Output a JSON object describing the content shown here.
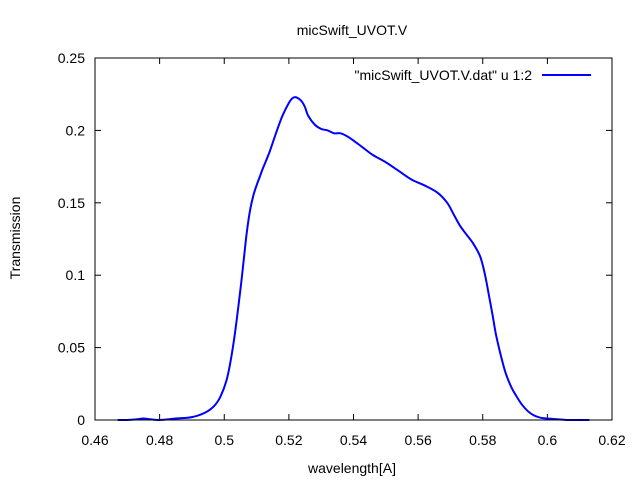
{
  "chart_data": {
    "type": "line",
    "title": "micSwift_UVOT.V",
    "xlabel": "wavelength[A]",
    "ylabel": "Transmission",
    "xlim": [
      0.46,
      0.62
    ],
    "ylim": [
      0,
      0.25
    ],
    "xticks": [
      "0.46",
      "0.48",
      "0.5",
      "0.52",
      "0.54",
      "0.56",
      "0.58",
      "0.6",
      "0.62"
    ],
    "yticks": [
      "0",
      "0.05",
      "0.1",
      "0.15",
      "0.2",
      "0.25"
    ],
    "grid": false,
    "legend_position": "top-right",
    "series": [
      {
        "name": "\"micSwift_UVOT.V.dat\" u 1:2",
        "color": "#0000ff",
        "x": [
          0.467,
          0.47,
          0.473,
          0.475,
          0.477,
          0.48,
          0.485,
          0.49,
          0.494,
          0.497,
          0.499,
          0.501,
          0.503,
          0.505,
          0.506,
          0.507,
          0.508,
          0.509,
          0.51,
          0.511,
          0.512,
          0.514,
          0.516,
          0.518,
          0.52,
          0.521,
          0.522,
          0.523,
          0.524,
          0.525,
          0.526,
          0.528,
          0.53,
          0.532,
          0.534,
          0.536,
          0.538,
          0.54,
          0.543,
          0.546,
          0.55,
          0.554,
          0.558,
          0.562,
          0.566,
          0.569,
          0.571,
          0.573,
          0.575,
          0.577,
          0.579,
          0.58,
          0.581,
          0.582,
          0.583,
          0.584,
          0.585,
          0.586,
          0.587,
          0.588,
          0.589,
          0.59,
          0.592,
          0.594,
          0.596,
          0.598,
          0.6,
          0.603,
          0.606,
          0.61,
          0.613
        ],
        "y": [
          0.0,
          0.0,
          0.0005,
          0.001,
          0.0005,
          0.0,
          0.001,
          0.002,
          0.005,
          0.01,
          0.017,
          0.03,
          0.055,
          0.09,
          0.11,
          0.13,
          0.145,
          0.155,
          0.162,
          0.168,
          0.174,
          0.185,
          0.198,
          0.21,
          0.219,
          0.222,
          0.223,
          0.222,
          0.22,
          0.216,
          0.21,
          0.204,
          0.201,
          0.2,
          0.198,
          0.198,
          0.196,
          0.193,
          0.188,
          0.183,
          0.178,
          0.172,
          0.166,
          0.162,
          0.157,
          0.15,
          0.142,
          0.134,
          0.128,
          0.122,
          0.114,
          0.107,
          0.097,
          0.085,
          0.073,
          0.06,
          0.05,
          0.041,
          0.033,
          0.027,
          0.022,
          0.018,
          0.011,
          0.006,
          0.003,
          0.0015,
          0.001,
          0.0005,
          0.0,
          0.0,
          0.0
        ]
      }
    ]
  }
}
